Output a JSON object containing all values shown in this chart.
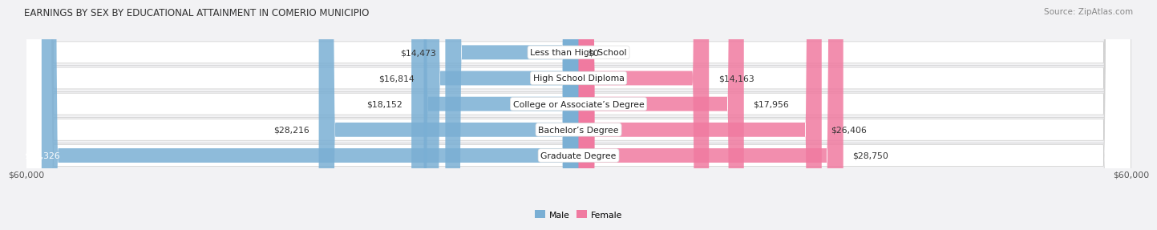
{
  "title": "EARNINGS BY SEX BY EDUCATIONAL ATTAINMENT IN COMERIO MUNICIPIO",
  "source": "Source: ZipAtlas.com",
  "categories": [
    "Less than High School",
    "High School Diploma",
    "College or Associate’s Degree",
    "Bachelor’s Degree",
    "Graduate Degree"
  ],
  "male_values": [
    14473,
    16814,
    18152,
    28216,
    58326
  ],
  "female_values": [
    0,
    14163,
    17956,
    26406,
    28750
  ],
  "male_color": "#7aafd4",
  "female_color": "#f07aa0",
  "max_value": 60000,
  "bg_color": "#f2f2f4",
  "row_bg_color": "#e2e2ea",
  "row_bg_color2": "#ffffff",
  "title_fontsize": 8.5,
  "source_fontsize": 7.5,
  "label_fontsize": 7.8,
  "value_fontsize": 7.8,
  "axis_label_fontsize": 7.8
}
